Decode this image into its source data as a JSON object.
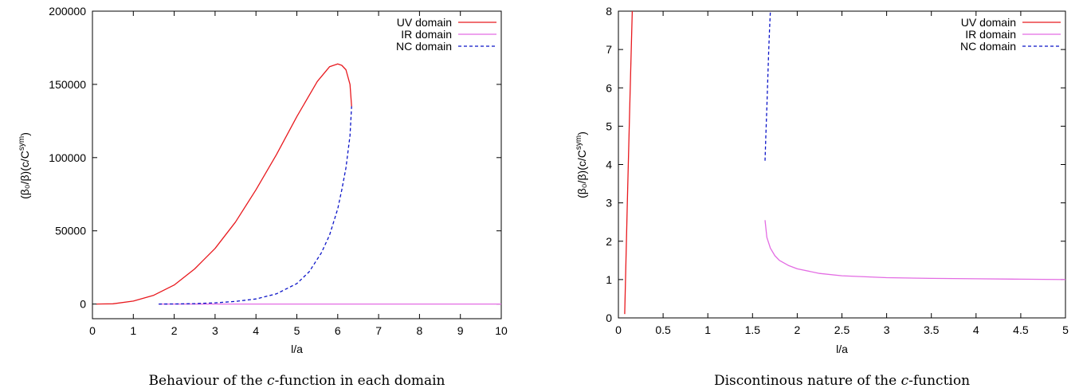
{
  "colors": {
    "uv": "#e8191e",
    "ir": "#e36ce3",
    "nc": "#0b14c8"
  },
  "chart_data": [
    {
      "type": "line",
      "xlabel": "l/a",
      "ylabel": "(β₀/β)(c/C^sym)",
      "xlim": [
        0,
        10
      ],
      "ylim": [
        -10000,
        200000
      ],
      "xticks": [
        0,
        1,
        2,
        3,
        4,
        5,
        6,
        7,
        8,
        9,
        10
      ],
      "yticks": [
        0,
        50000,
        100000,
        150000,
        200000
      ],
      "legend_position": "top-right",
      "caption": {
        "before": "Behaviour of the ",
        "italic": "c",
        "after": "-function in each domain"
      },
      "series": [
        {
          "name": "UV domain",
          "style": "solid",
          "x": [
            0.1,
            0.5,
            1.0,
            1.5,
            2.0,
            2.5,
            3.0,
            3.5,
            4.0,
            4.5,
            5.0,
            5.5,
            5.8,
            6.0,
            6.1,
            6.2,
            6.3,
            6.34
          ],
          "y": [
            0,
            200,
            2000,
            6000,
            13000,
            24000,
            38000,
            56000,
            78000,
            102000,
            128000,
            152000,
            162000,
            164000,
            163000,
            160000,
            150000,
            135000
          ]
        },
        {
          "name": "IR domain",
          "style": "solid",
          "x": [
            1.62,
            2,
            3,
            4,
            5,
            6,
            7,
            8,
            9,
            10
          ],
          "y": [
            0,
            0,
            0,
            0,
            0,
            0,
            0,
            0,
            0,
            0
          ]
        },
        {
          "name": "NC domain",
          "style": "dashed",
          "x": [
            1.62,
            2.0,
            2.5,
            3.0,
            3.5,
            4.0,
            4.5,
            5.0,
            5.3,
            5.6,
            5.8,
            6.0,
            6.1,
            6.2,
            6.3,
            6.34
          ],
          "y": [
            0,
            50,
            300,
            800,
            1800,
            3500,
            7000,
            14000,
            22000,
            35000,
            47000,
            65000,
            78000,
            93000,
            115000,
            135000
          ]
        }
      ]
    },
    {
      "type": "line",
      "xlabel": "l/a",
      "ylabel": "(β₀/β)(c/C^sym)",
      "xlim": [
        0,
        5
      ],
      "ylim": [
        0,
        8
      ],
      "xticks": [
        0,
        0.5,
        1,
        1.5,
        2,
        2.5,
        3,
        3.5,
        4,
        4.5,
        5
      ],
      "yticks": [
        0,
        1,
        2,
        3,
        4,
        5,
        6,
        7,
        8
      ],
      "legend_position": "top-right",
      "caption": {
        "before": "Discontinous nature of the ",
        "italic": "c",
        "after": "-function"
      },
      "series": [
        {
          "name": "UV domain",
          "style": "solid",
          "x": [
            0.07,
            0.1,
            0.13,
            0.155
          ],
          "y": [
            0.1,
            3.0,
            5.8,
            8.0
          ]
        },
        {
          "name": "IR domain",
          "style": "solid",
          "x": [
            1.64,
            1.66,
            1.7,
            1.75,
            1.8,
            1.9,
            2.0,
            2.25,
            2.5,
            3.0,
            3.5,
            4.0,
            4.5,
            5.0
          ],
          "y": [
            2.55,
            2.1,
            1.82,
            1.62,
            1.5,
            1.37,
            1.28,
            1.16,
            1.1,
            1.05,
            1.03,
            1.02,
            1.01,
            1.0
          ]
        },
        {
          "name": "NC domain",
          "style": "dashed",
          "x": [
            1.64,
            1.65,
            1.66,
            1.67,
            1.68,
            1.69,
            1.7
          ],
          "y": [
            4.1,
            4.8,
            5.5,
            6.2,
            6.9,
            7.5,
            8.0
          ]
        }
      ]
    }
  ]
}
